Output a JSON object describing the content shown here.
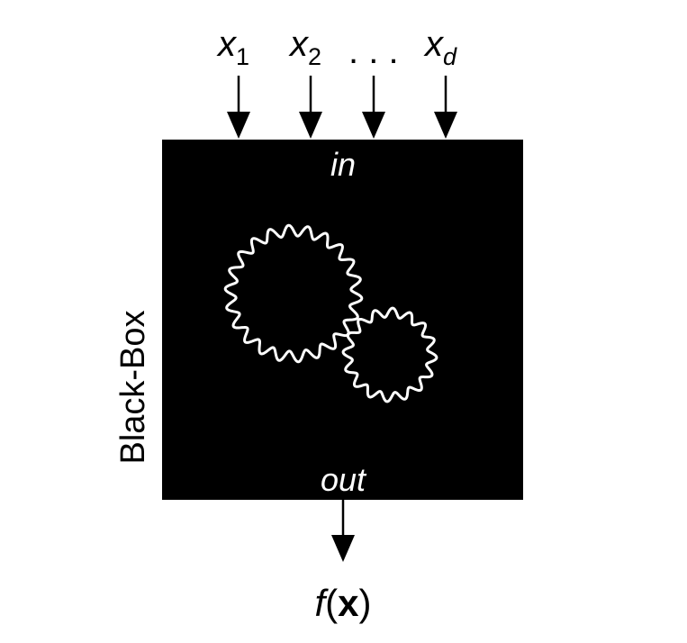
{
  "inputs": [
    {
      "base": "x",
      "sub": "1"
    },
    {
      "base": "x",
      "sub": "2"
    },
    {
      "base": "x",
      "sub": "d"
    }
  ],
  "ellipsis": ". . .",
  "box": {
    "side_label": "Black-Box",
    "in_label": "in",
    "out_label": "out"
  },
  "output": {
    "func": "f",
    "open_paren": "(",
    "arg": "x",
    "close_paren": ")"
  },
  "colors": {
    "box_fill": "#000000",
    "gear_stroke": "#ffffff",
    "arrow": "#000000",
    "text": "#000000"
  }
}
